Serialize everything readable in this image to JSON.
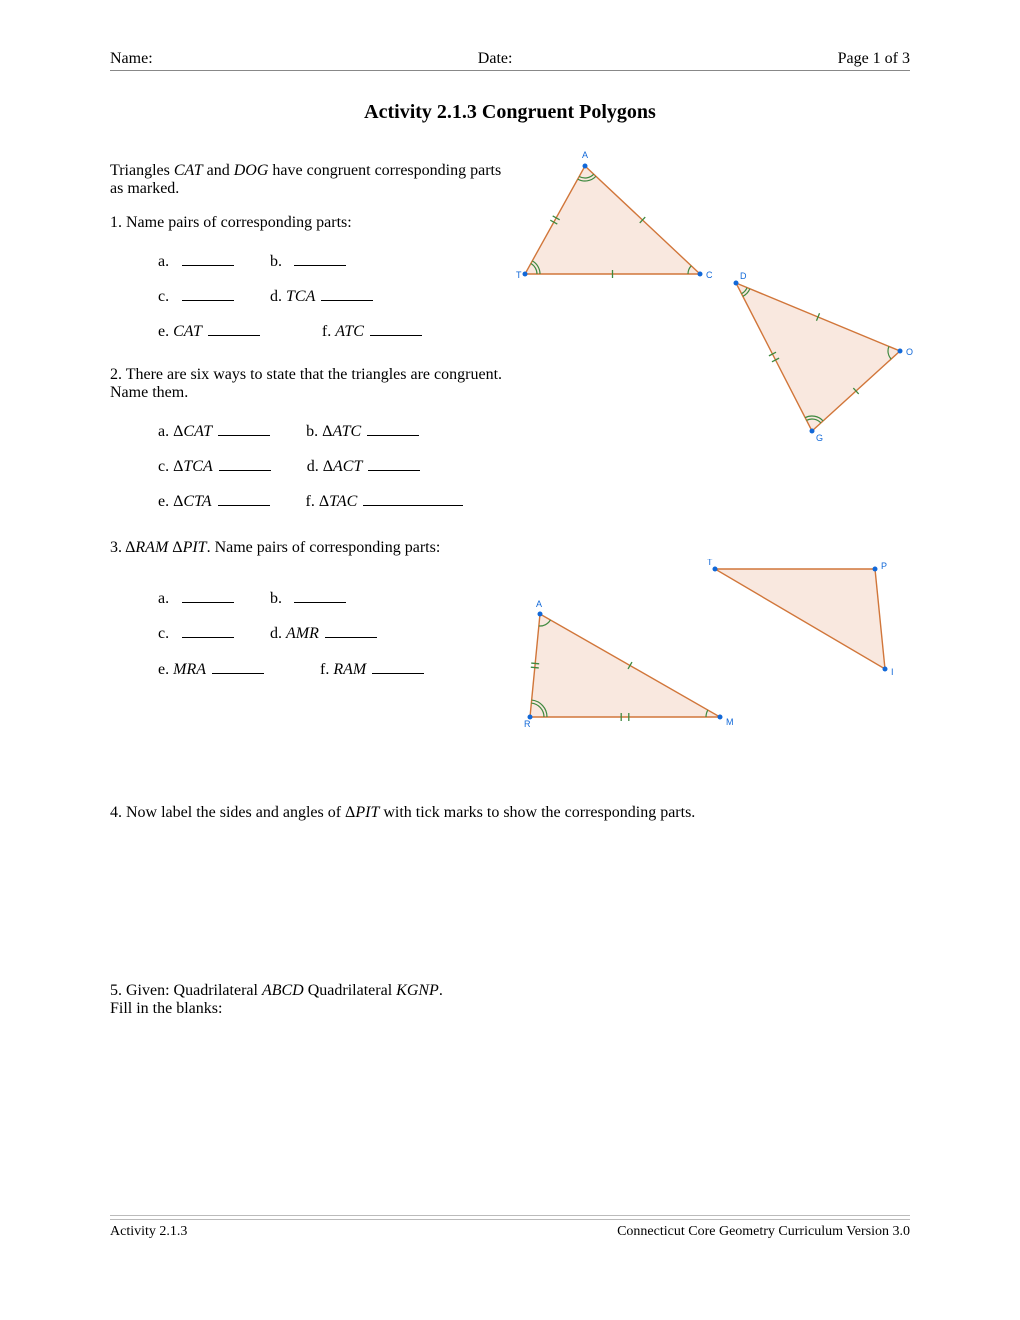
{
  "header": {
    "name_label": "Name:",
    "date_label": "Date:",
    "page_label": "Page 1 of 3"
  },
  "title": "Activity 2.1.3 Congruent Polygons",
  "intro_line1": "Triangles ",
  "intro_i1": "CAT",
  "intro_mid": " and ",
  "intro_i2": "DOG",
  "intro_line2": " have congruent corresponding parts as marked.",
  "q1": "1.  Name pairs of corresponding parts:",
  "q1_items": {
    "a": "a.",
    "b": "b.",
    "c": "c.",
    "d_pre": "d.  ",
    "d_i": "TCA",
    "e_pre": "e.  ",
    "e_i": "CAT",
    "f_pre": "f.  ",
    "f_i": "ATC"
  },
  "q2": "2.  There are six ways to state that the triangles are congruent.  Name them.",
  "q2_items": {
    "a_pre": "a. Δ",
    "a_i": "CAT",
    "b_pre": "b. Δ",
    "b_i": "ATC",
    "c_pre": "c. Δ",
    "c_i": "TCA",
    "d_pre": "d. Δ",
    "d_i": "ACT",
    "e_pre": "e. Δ",
    "e_i": "CTA",
    "f_pre": "f. Δ",
    "f_i": "TAC"
  },
  "q3_pre": "3.  Δ",
  "q3_i1": "RAM",
  "q3_mid": "  Δ",
  "q3_i2": "PIT",
  "q3_post": ".  Name pairs of corresponding parts:",
  "q3_items": {
    "a": "a.",
    "b": "b.",
    "c": "c.",
    "d_pre": "d.  ",
    "d_i": "AMR",
    "e_pre": "e.  ",
    "e_i": "MRA",
    "f_pre": "f.  ",
    "f_i": "RAM"
  },
  "q4_pre": "4.  Now label the sides and angles of Δ",
  "q4_i": "PIT",
  "q4_post": " with tick marks to show the corresponding parts.",
  "q5_pre": "5.  Given:  Quadrilateral ",
  "q5_i1": "ABCD",
  "q5_mid": "  Quadrilateral ",
  "q5_i2": "KGNP",
  "q5_post": ".",
  "q5_line2": "Fill in the blanks:",
  "footer": {
    "left": "Activity 2.1.3",
    "right": "Connecticut Core Geometry Curriculum Version 3.0"
  },
  "colors": {
    "triangle_fill": "#f9e8df",
    "triangle_stroke": "#d1763a",
    "vertex_point": "#1168d8",
    "angle_arc": "#3f893f",
    "tick": "#3f893f"
  },
  "triangle_CAT": {
    "vertices": {
      "C": [
        190,
        128
      ],
      "A": [
        75,
        20
      ],
      "T": [
        15,
        128
      ]
    },
    "labels": {
      "C": [
        196,
        132
      ],
      "A": [
        72,
        12
      ],
      "T": [
        6,
        132
      ]
    }
  },
  "triangle_DOG": {
    "vertices": {
      "D": [
        36,
        12
      ],
      "O": [
        200,
        80
      ],
      "G": [
        112,
        160
      ]
    },
    "labels": {
      "D": [
        40,
        8
      ],
      "O": [
        206,
        84
      ],
      "G": [
        116,
        170
      ]
    }
  },
  "triangle_RAM": {
    "vertices": {
      "R": [
        10,
        118
      ],
      "A": [
        20,
        15
      ],
      "M": [
        200,
        118
      ]
    },
    "labels": {
      "R": [
        4,
        128
      ],
      "A": [
        16,
        8
      ],
      "M": [
        206,
        126
      ]
    }
  },
  "triangle_PIT": {
    "vertices": {
      "P": [
        170,
        10
      ],
      "I": [
        180,
        110
      ],
      "T": [
        10,
        10
      ]
    },
    "labels": {
      "P": [
        176,
        10
      ],
      "I": [
        186,
        116
      ],
      "T": [
        2,
        6
      ]
    }
  }
}
